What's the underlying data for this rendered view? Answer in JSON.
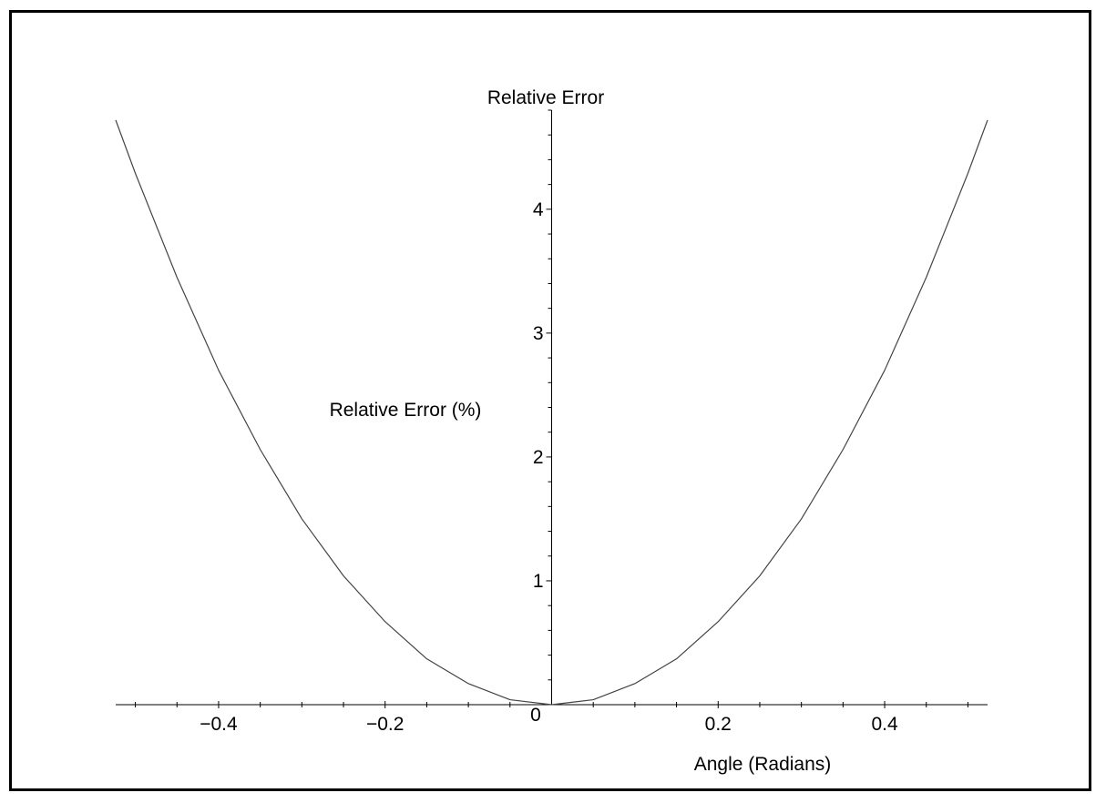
{
  "chart_data": {
    "type": "line",
    "title": "Relative Error",
    "ylabel": "Relative Error (%)",
    "xlabel": "Angle (Radians)",
    "xlim": [
      -0.5236,
      0.5236
    ],
    "ylim": [
      0,
      4.8
    ],
    "xticks": [
      {
        "value": -0.4,
        "label": "−0.4"
      },
      {
        "value": -0.2,
        "label": "−0.2"
      },
      {
        "value": 0.2,
        "label": "0.2"
      },
      {
        "value": 0.4,
        "label": "0.4"
      }
    ],
    "yticks": [
      {
        "value": 1,
        "label": "1"
      },
      {
        "value": 2,
        "label": "2"
      },
      {
        "value": 3,
        "label": "3"
      },
      {
        "value": 4,
        "label": "4"
      }
    ],
    "origin_label": "0",
    "series": [
      {
        "color": "#444444",
        "x": [
          -0.5236,
          -0.5,
          -0.45,
          -0.4,
          -0.35,
          -0.3,
          -0.25,
          -0.2,
          -0.15,
          -0.1,
          -0.05,
          0,
          0.05,
          0.1,
          0.15,
          0.2,
          0.25,
          0.3,
          0.35,
          0.4,
          0.45,
          0.5,
          0.5236
        ],
        "y": [
          4.72,
          4.29,
          3.45,
          2.7,
          2.06,
          1.5,
          1.04,
          0.67,
          0.37,
          0.17,
          0.04,
          0,
          0.04,
          0.17,
          0.37,
          0.67,
          1.04,
          1.5,
          2.06,
          2.7,
          3.45,
          4.29,
          4.72
        ]
      }
    ],
    "grid": false
  }
}
